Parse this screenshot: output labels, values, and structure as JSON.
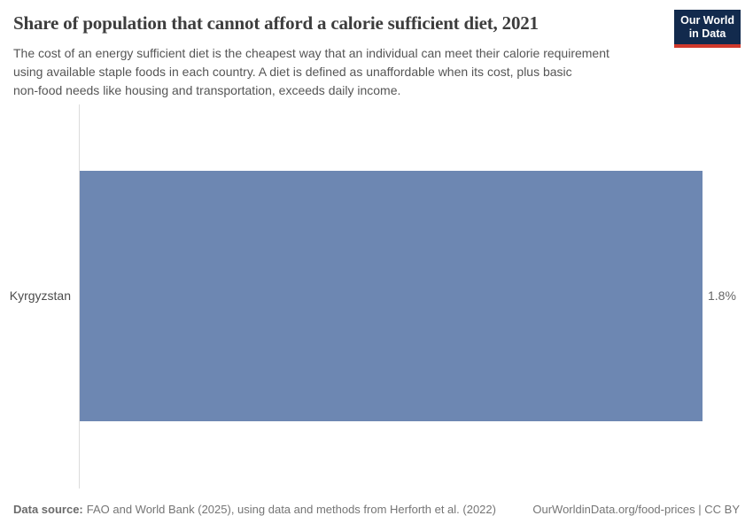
{
  "header": {
    "title": "Share of population that cannot afford a calorie sufficient diet, 2021",
    "subtitle_lines": [
      "The cost of an energy sufficient diet is the cheapest way that an individual can meet their calorie requirement",
      "using available staple foods in each country. A diet is defined as unaffordable when its cost, plus basic",
      "non-food needs like housing and transportation, exceeds daily income."
    ],
    "logo": {
      "line1": "Our World",
      "line2": "in Data",
      "bg_color": "#122a4d",
      "accent_color": "#d0392c",
      "text_color": "#ffffff"
    }
  },
  "chart_data": {
    "type": "bar",
    "orientation": "horizontal",
    "title": "Share of population that cannot afford a calorie sufficient diet, 2021",
    "categories": [
      "Kyrgyzstan"
    ],
    "values": [
      1.8
    ],
    "unit": "%",
    "value_labels": [
      "1.8%"
    ],
    "xlim": [
      0,
      1.8
    ],
    "grid": false,
    "legend": "none",
    "bar_color": "#6d87b2",
    "axis_line_color": "#dcdcdc"
  },
  "footer": {
    "datasource_label": "Data source:",
    "datasource_text": "FAO and World Bank (2025), using data and methods from Herforth et al. (2022)",
    "attribution": "OurWorldinData.org/food-prices | CC BY"
  }
}
